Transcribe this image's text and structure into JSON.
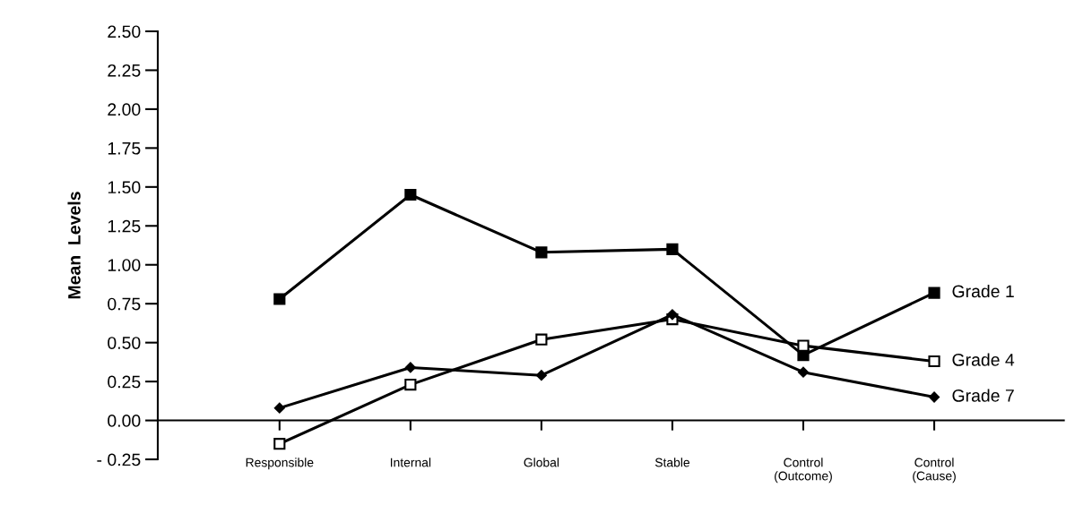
{
  "chart_data": {
    "type": "line",
    "ylabel": "Mean  Levels",
    "categories": [
      "Responsible",
      "Internal",
      "Global",
      "Stable",
      "Control\n(Outcome)",
      "Control\n(Cause)"
    ],
    "series": [
      {
        "name": "Grade 1",
        "color": "#000000",
        "marker": "square",
        "values": [
          0.78,
          1.45,
          1.08,
          1.1,
          0.42,
          0.82
        ]
      },
      {
        "name": "Grade 4",
        "color": "#000000",
        "marker": "square",
        "values": [
          -0.15,
          0.23,
          0.52,
          0.65,
          0.48,
          0.38
        ]
      },
      {
        "name": "Grade 7",
        "color": "#000000",
        "marker": "diamond",
        "values": [
          0.08,
          0.34,
          0.29,
          0.68,
          0.31,
          0.15
        ]
      }
    ],
    "ylim": [
      -0.25,
      2.5
    ],
    "yticks": [
      {
        "value": -0.25,
        "label": "- 0.25"
      },
      {
        "value": 0,
        "label": "0.00"
      },
      {
        "value": 0.25,
        "label": "0.25"
      },
      {
        "value": 0.5,
        "label": "0.50"
      },
      {
        "value": 0.75,
        "label": "0.75"
      },
      {
        "value": 1,
        "label": "1.00"
      },
      {
        "value": 1.25,
        "label": "1.25"
      },
      {
        "value": 1.5,
        "label": "1.50"
      },
      {
        "value": 1.75,
        "label": "1.75"
      },
      {
        "value": 2,
        "label": "2.00"
      },
      {
        "value": 2.25,
        "label": "2.25"
      },
      {
        "value": 2.5,
        "label": "2.50"
      }
    ],
    "legend": false,
    "line_style": "solid"
  }
}
